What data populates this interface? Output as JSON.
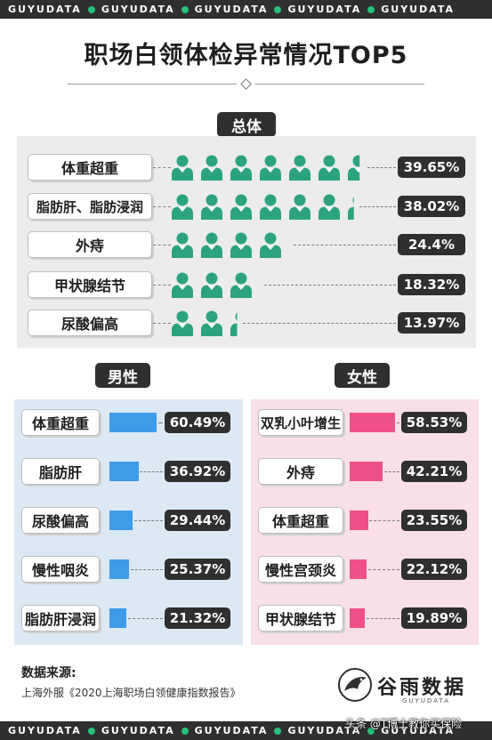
{
  "brand_bar": {
    "word": "GUYUDATA"
  },
  "title": "职场白领体检异常情况TOP5",
  "chart_data": [
    {
      "type": "bar",
      "title": "总体",
      "categories": [
        "体重超重",
        "脂肪肝、脂肪浸润",
        "外痔",
        "甲状腺结节",
        "尿酸偏高"
      ],
      "values": [
        39.65,
        38.02,
        24.4,
        18.32,
        13.97
      ],
      "labels": [
        "39.65%",
        "38.02%",
        "24.4%",
        "18.32%",
        "13.97%"
      ],
      "encoding": "person-pictogram",
      "colors": {
        "mark": "#2aa37e"
      }
    },
    {
      "type": "bar",
      "title": "男性",
      "categories": [
        "体重超重",
        "脂肪肝",
        "尿酸偏高",
        "慢性咽炎",
        "脂肪肝浸润"
      ],
      "values": [
        60.49,
        36.92,
        29.44,
        25.37,
        21.32
      ],
      "labels": [
        "60.49%",
        "36.92%",
        "29.44%",
        "25.37%",
        "21.32%"
      ],
      "colors": {
        "mark": "#3d9be9"
      }
    },
    {
      "type": "bar",
      "title": "女性",
      "categories": [
        "双乳小叶增生",
        "外痔",
        "体重超重",
        "慢性宫颈炎",
        "甲状腺结节"
      ],
      "values": [
        58.53,
        42.21,
        23.55,
        22.12,
        19.89
      ],
      "labels": [
        "58.53%",
        "42.21%",
        "23.55%",
        "22.12%",
        "19.89%"
      ],
      "colors": {
        "mark": "#f0508a"
      }
    }
  ],
  "source": {
    "title": "数据来源:",
    "text": "上海外服《2020上海职场白领健康指数报告》"
  },
  "logo": {
    "name": "谷雨数据",
    "sub": "GUYUDATA"
  },
  "watermark": "头条 @T博士教你买保险",
  "colors": {
    "dark": "#2f2f2f",
    "accent_green": "#26c07a",
    "overall_bg": "#ececec",
    "male_bg": "#dce9f5",
    "female_bg": "#f9dfe8"
  }
}
